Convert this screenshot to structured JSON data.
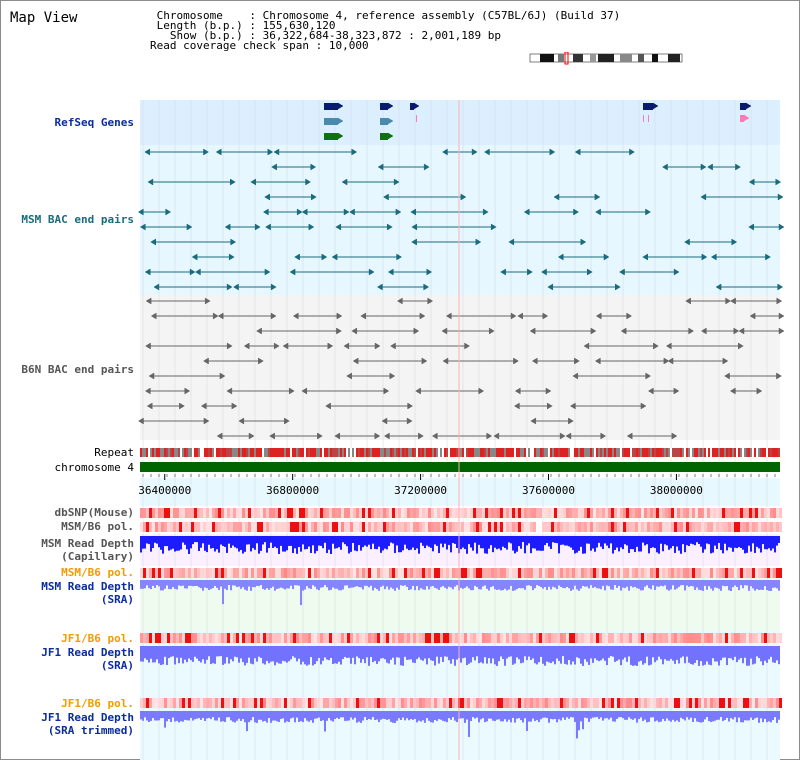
{
  "page_title": "Map View",
  "info": {
    "chromosome_key": "Chromosome",
    "chromosome_value": "Chromosome 4, reference assembly (C57BL/6J) (Build 37)",
    "length_key": "Length (b.p.)",
    "length_value": "155,630,120",
    "show_key": "Show (b.p.)",
    "show_value": "36,322,684-38,323,872 : 2,001,189 bp",
    "coverage_key": "Read coverage check span",
    "coverage_value": "10,000"
  },
  "tracks": {
    "refseq": "RefSeq Genes",
    "msm_bac": "MSM BAC end pairs",
    "b6n_bac": "B6N BAC end pairs",
    "repeat": "Repeat",
    "chromosome": "chromosome 4",
    "dbsnp": "dbSNP(Mouse)",
    "msm_pol": "MSM/B6 pol.",
    "msm_depth_cap_1": "MSM Read Depth",
    "msm_depth_cap_2": "(Capillary)",
    "msm_pol_sra": "MSM/B6 pol.",
    "msm_depth_sra_1": "MSM Read Depth",
    "msm_depth_sra_2": "(SRA)",
    "jf1_pol": "JF1/B6 pol.",
    "jf1_depth_1": "JF1 Read Depth",
    "jf1_depth_2": "(SRA)",
    "jf1_pol_t": "JF1/B6 pol.",
    "jf1_depth_t_1": "JF1 Read Depth",
    "jf1_depth_t_2": "(SRA trimmed)"
  },
  "axis": {
    "ticks": [
      {
        "value": 36400000,
        "label": "36400000"
      },
      {
        "value": 36800000,
        "label": "36800000"
      },
      {
        "value": 37200000,
        "label": "37200000"
      },
      {
        "value": 37600000,
        "label": "37600000"
      },
      {
        "value": 38000000,
        "label": "38000000"
      }
    ],
    "range": [
      36322684,
      38323872
    ]
  },
  "colors": {
    "refseq_bg": "#dcefff",
    "msm_bg": "#e6f7ff",
    "b6n_bg": "#f4f4f4",
    "chromosome_bar": "#006400",
    "depth_blue": "#1c1cff",
    "depth_light": "#8585ff",
    "pol_red": "#ff2020",
    "accent_blue": "#0a2c9c"
  }
}
